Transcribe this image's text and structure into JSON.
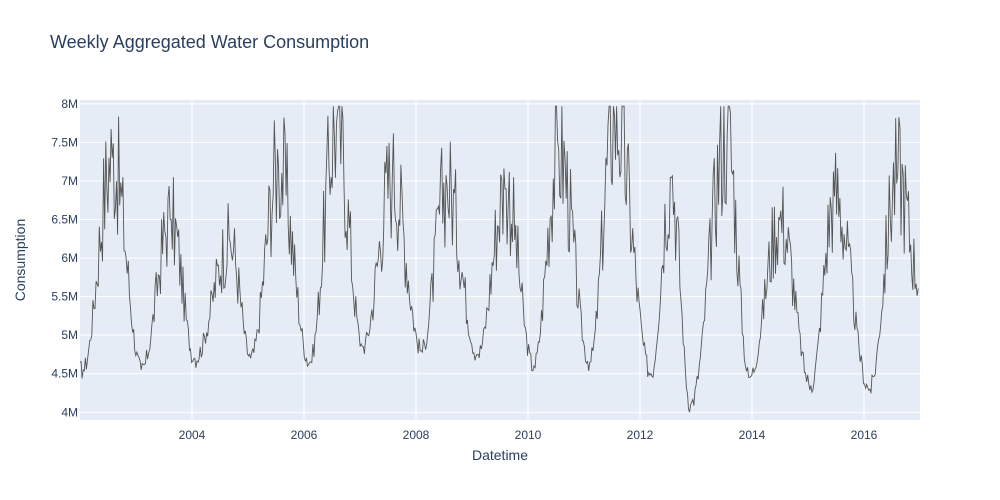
{
  "chart_data": {
    "type": "line",
    "title": "Weekly Aggregated Water Consumption",
    "xlabel": "Datetime",
    "ylabel": "Consumption",
    "xlim": [
      2002.0,
      2017.0
    ],
    "ylim": [
      3900000,
      8050000
    ],
    "x_ticks": [
      2004,
      2006,
      2008,
      2010,
      2012,
      2014,
      2016
    ],
    "x_tick_labels": [
      "2004",
      "2006",
      "2008",
      "2010",
      "2012",
      "2014",
      "2016"
    ],
    "y_ticks": [
      4000000,
      4500000,
      5000000,
      5500000,
      6000000,
      6500000,
      7000000,
      7500000,
      8000000
    ],
    "y_tick_labels": [
      "4M",
      "4.5M",
      "5M",
      "5.5M",
      "6M",
      "6.5M",
      "7M",
      "7.5M",
      "8M"
    ],
    "grid": true,
    "colors": {
      "background": "#e5ecf6",
      "grid": "#ffffff",
      "line": "#555555",
      "text": "#2a3f5f"
    },
    "series": [
      {
        "x_start": 2002.0,
        "x_step_weeks": 1,
        "annual_peaks": [
          [
            2002.58,
            7300000
          ],
          [
            2003.62,
            6500000
          ],
          [
            2004.68,
            6200000
          ],
          [
            2005.55,
            7200000
          ],
          [
            2006.58,
            7750000
          ],
          [
            2007.58,
            7050000
          ],
          [
            2008.55,
            6950000
          ],
          [
            2009.6,
            6900000
          ],
          [
            2010.55,
            7400000
          ],
          [
            2011.55,
            7850000
          ],
          [
            2012.55,
            7050000
          ],
          [
            2013.55,
            7600000
          ],
          [
            2014.5,
            6500000
          ],
          [
            2015.48,
            6800000
          ],
          [
            2016.6,
            7100000
          ]
        ],
        "annual_troughs": [
          [
            2002.05,
            4550000
          ],
          [
            2003.1,
            4550000
          ],
          [
            2004.05,
            4700000
          ],
          [
            2005.05,
            4700000
          ],
          [
            2006.1,
            4650000
          ],
          [
            2007.05,
            4850000
          ],
          [
            2008.1,
            4800000
          ],
          [
            2009.1,
            4750000
          ],
          [
            2010.1,
            4600000
          ],
          [
            2011.1,
            4650000
          ],
          [
            2012.2,
            4500000
          ],
          [
            2012.9,
            4100000
          ],
          [
            2013.95,
            4450000
          ],
          [
            2015.05,
            4350000
          ],
          [
            2016.1,
            4300000
          ]
        ],
        "end_value": [
          2016.98,
          5780000
        ]
      }
    ]
  }
}
